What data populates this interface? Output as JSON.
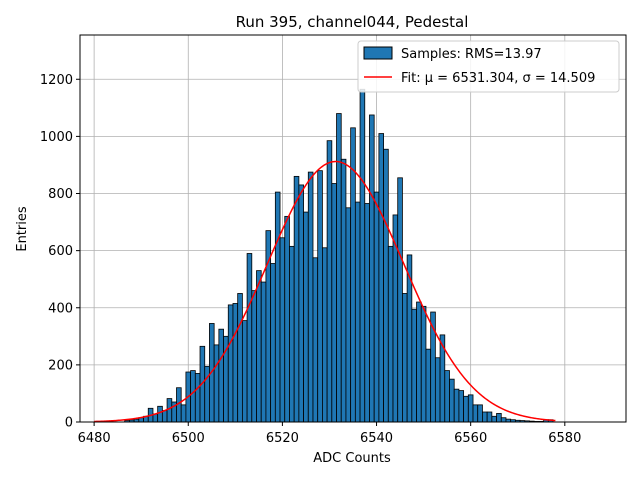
{
  "chart_data": {
    "type": "bar",
    "title": "Run 395, channel044, Pedestal",
    "xlabel": "ADC Counts",
    "ylabel": "Entries",
    "xlim": [
      6477,
      6593
    ],
    "ylim": [
      0,
      1355
    ],
    "grid": true,
    "legend_position": "top-right",
    "xticks": [
      6480,
      6500,
      6520,
      6540,
      6560,
      6580
    ],
    "yticks": [
      0,
      200,
      400,
      600,
      800,
      1000,
      1200
    ],
    "colors": {
      "bar_fill": "#1f77b4",
      "bar_edge": "#000000",
      "fit_line": "#ff0000",
      "grid": "#b0b0b0"
    },
    "histogram": {
      "name": "Samples: RMS=13.97",
      "bin_width": 1,
      "x": [
        6487,
        6488,
        6489,
        6490,
        6491,
        6492,
        6493,
        6494,
        6495,
        6496,
        6497,
        6498,
        6499,
        6500,
        6501,
        6502,
        6503,
        6504,
        6505,
        6506,
        6507,
        6508,
        6509,
        6510,
        6511,
        6512,
        6513,
        6514,
        6515,
        6516,
        6517,
        6518,
        6519,
        6520,
        6521,
        6522,
        6523,
        6524,
        6525,
        6526,
        6527,
        6528,
        6529,
        6530,
        6531,
        6532,
        6533,
        6534,
        6535,
        6536,
        6537,
        6538,
        6539,
        6540,
        6541,
        6542,
        6543,
        6544,
        6545,
        6546,
        6547,
        6548,
        6549,
        6550,
        6551,
        6552,
        6553,
        6554,
        6555,
        6556,
        6557,
        6558,
        6559,
        6560,
        6561,
        6562,
        6563,
        6564,
        6565,
        6566,
        6567,
        6568,
        6569,
        6570,
        6571,
        6572,
        6573,
        6574,
        6575,
        6576,
        6577
      ],
      "values": [
        5,
        7,
        10,
        15,
        20,
        48,
        28,
        55,
        40,
        82,
        70,
        120,
        60,
        175,
        180,
        170,
        265,
        195,
        345,
        270,
        325,
        300,
        410,
        415,
        450,
        355,
        590,
        460,
        530,
        490,
        670,
        555,
        805,
        645,
        720,
        615,
        860,
        830,
        735,
        875,
        575,
        880,
        610,
        985,
        835,
        1080,
        920,
        750,
        1030,
        770,
        1165,
        765,
        1075,
        805,
        1010,
        955,
        615,
        725,
        855,
        450,
        585,
        395,
        420,
        405,
        255,
        385,
        225,
        305,
        180,
        150,
        115,
        110,
        90,
        95,
        60,
        60,
        35,
        35,
        20,
        30,
        15,
        10,
        8,
        6,
        5,
        4,
        3,
        2,
        2,
        8,
        8
      ]
    },
    "fit": {
      "name": "Fit: μ = 6531.304, σ = 14.509",
      "mu": 6531.304,
      "sigma": 14.509,
      "amplitude": 912,
      "x_range": [
        6480,
        6578
      ]
    }
  }
}
